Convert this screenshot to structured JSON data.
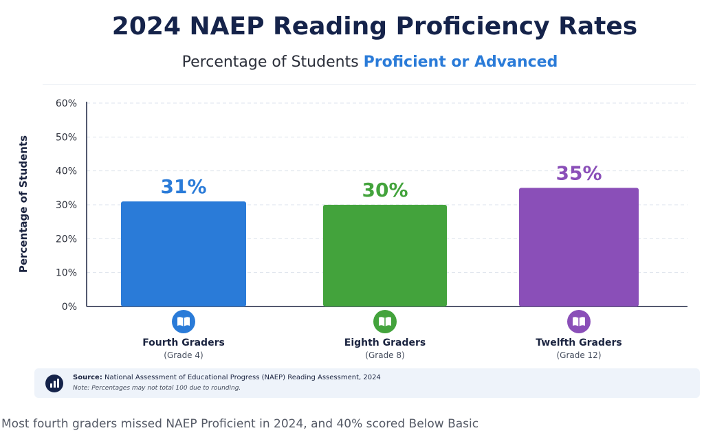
{
  "chart_data": {
    "type": "bar",
    "title": "2024 NAEP Reading Proficiency Rates",
    "subtitle_prefix": "Percentage of Students ",
    "subtitle_highlight": "Proficient or Advanced",
    "ylabel": "Percentage of Students",
    "ylim": [
      0,
      60
    ],
    "yticks": [
      "0%",
      "10%",
      "20%",
      "30%",
      "40%",
      "50%",
      "60%"
    ],
    "grid": true,
    "categories": [
      "Fourth Graders",
      "Eighth Graders",
      "Twelfth Graders"
    ],
    "category_sublabels": [
      "(Grade 4)",
      "(Grade 8)",
      "(Grade 12)"
    ],
    "values": [
      31,
      30,
      35
    ],
    "value_labels": [
      "31%",
      "30%",
      "35%"
    ],
    "colors": [
      "#2a7bd8",
      "#43a33c",
      "#8a4fb8"
    ]
  },
  "category_icon": "open-book-icon",
  "source": {
    "icon": "bar-chart-icon",
    "label": "Source:",
    "text": " National Assessment of Educational Progress (NAEP) Reading Assessment, 2024",
    "note": "Note: Percentages may not total 100 due to rounding."
  },
  "caption": "Most fourth graders missed NAEP Proficient in 2024, and 40% scored Below Basic"
}
